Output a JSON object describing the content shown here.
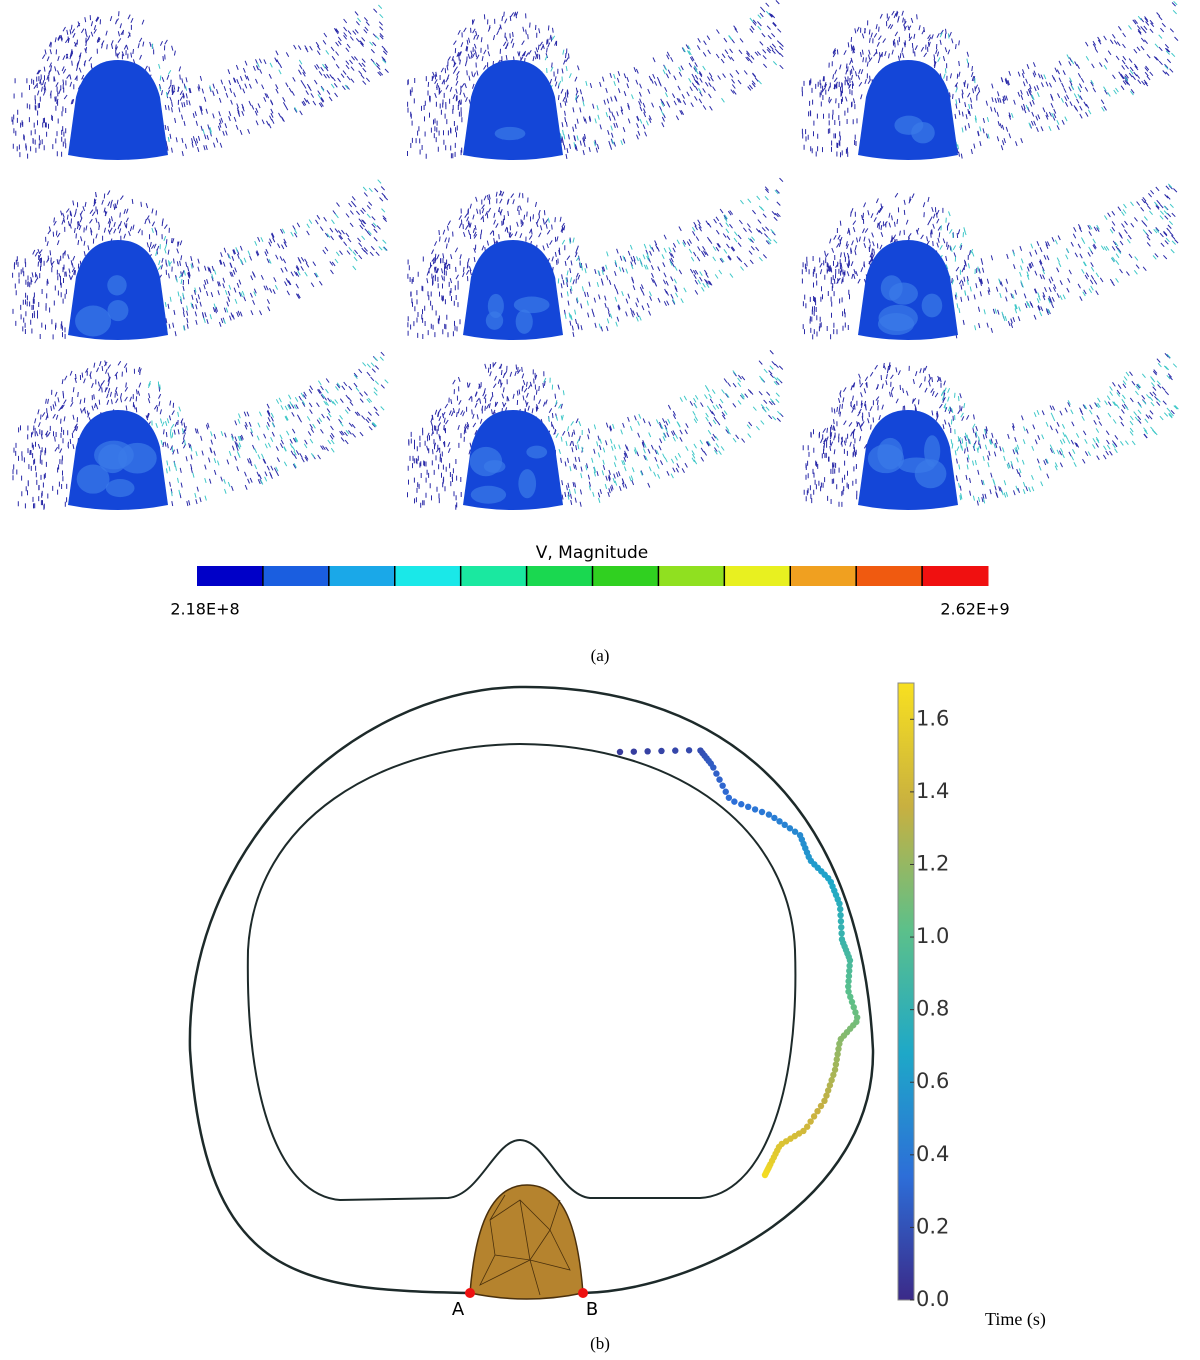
{
  "panel_a": {
    "colorbar": {
      "title": "V, Magnitude",
      "min_label": "2.18E+8",
      "max_label": "2.62E+9",
      "colors": [
        "#0000c8",
        "#1a5ee0",
        "#1aa8e8",
        "#1ae8e8",
        "#1ae8a0",
        "#1ad850",
        "#30d020",
        "#90e020",
        "#e8f020",
        "#f0a020",
        "#f05a10",
        "#f01010"
      ]
    },
    "caption": "(a)"
  },
  "panel_b": {
    "colorbar": {
      "label": "Time (s)",
      "ylim": [
        0,
        1.7
      ],
      "yticks": [
        {
          "value": 0,
          "label": "0.0"
        },
        {
          "value": 0.2,
          "label": "0.2"
        },
        {
          "value": 0.4,
          "label": "0.4"
        },
        {
          "value": 0.6,
          "label": "0.6"
        },
        {
          "value": 0.8,
          "label": "0.8"
        },
        {
          "value": 1.0,
          "label": "1.0"
        },
        {
          "value": 1.2,
          "label": "1.2"
        },
        {
          "value": 1.4,
          "label": "1.4"
        },
        {
          "value": 1.6,
          "label": "1.6"
        }
      ],
      "colormap": [
        "#3b2a88",
        "#2d6ed8",
        "#1ea8c8",
        "#5cc08a",
        "#c8b040",
        "#f8e020"
      ]
    },
    "point_labels": [
      "A",
      "B"
    ],
    "caption": "(b)"
  }
}
